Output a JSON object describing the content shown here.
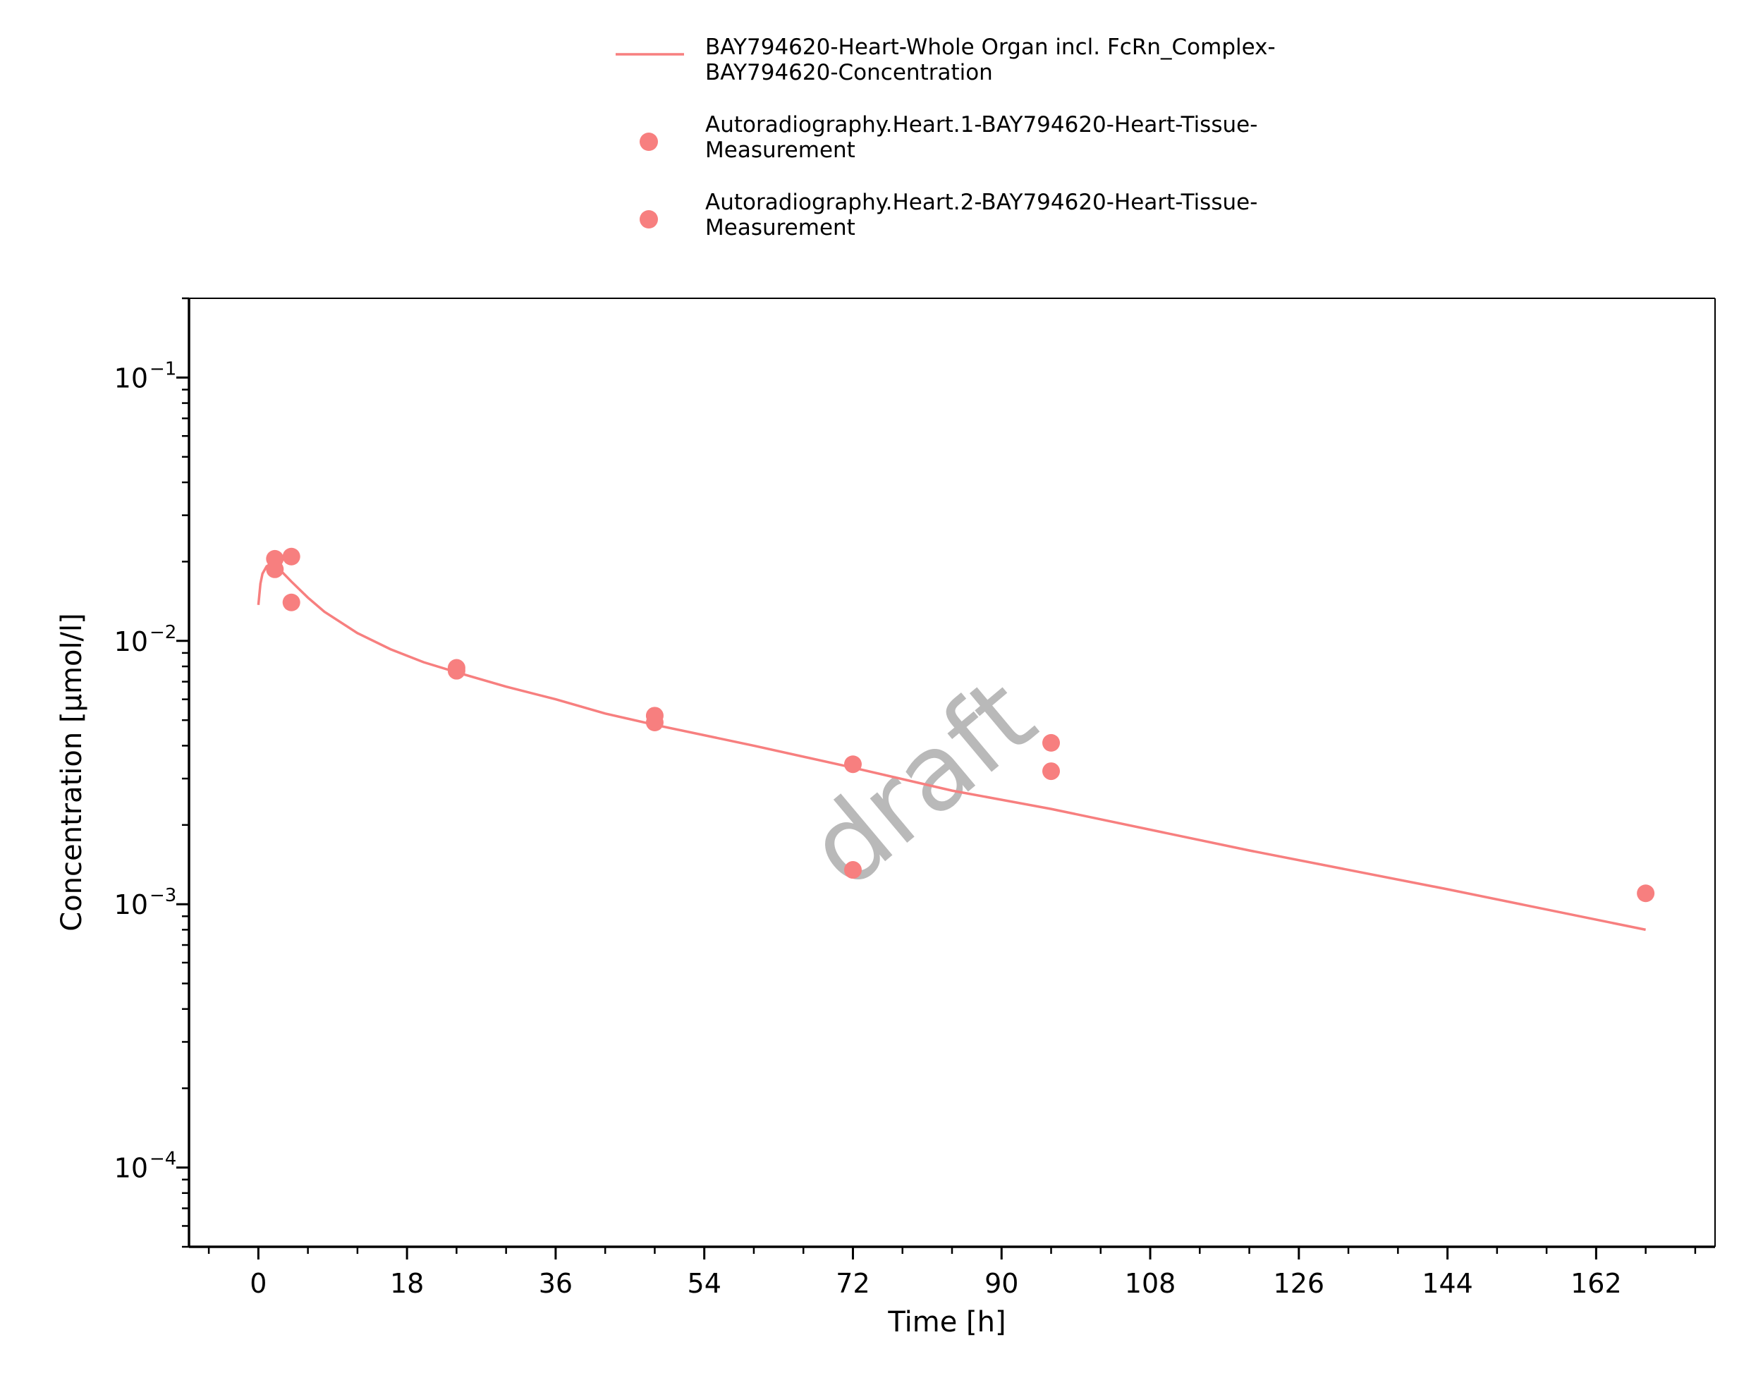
{
  "chart_data": {
    "type": "scatter",
    "xlabel": "Time [h]",
    "ylabel": "Concentration [µmol/l]",
    "x_ticks": [
      "0",
      "18",
      "36",
      "54",
      "72",
      "90",
      "108",
      "126",
      "144",
      "162"
    ],
    "x_tick_values": [
      0,
      18,
      36,
      54,
      72,
      90,
      108,
      126,
      144,
      162
    ],
    "xlim": [
      -8.4,
      176.4
    ],
    "y_scale": "log",
    "ylim": [
      5e-05,
      0.2
    ],
    "y_ticks": [
      {
        "value": 0.1,
        "base": "10",
        "exponent": "−1"
      },
      {
        "value": 0.01,
        "base": "10",
        "exponent": "−2"
      },
      {
        "value": 0.001,
        "base": "10",
        "exponent": "−3"
      },
      {
        "value": 0.0001,
        "base": "10",
        "exponent": "−4"
      }
    ],
    "grid": false,
    "legend_position": "top-center",
    "watermark": "draft",
    "series": [
      {
        "name_lines": [
          "BAY794620-Heart-Whole Organ incl. FcRn_Complex-",
          "BAY794620-Concentration"
        ],
        "kind": "line",
        "color": "#f77f7f",
        "x": [
          0,
          0.25,
          0.5,
          1,
          1.5,
          2,
          3,
          4,
          6,
          8,
          12,
          16,
          20,
          24,
          30,
          36,
          42,
          48,
          60,
          72,
          84,
          96,
          120,
          144,
          168
        ],
        "y": [
          0.0137,
          0.0165,
          0.018,
          0.0192,
          0.0196,
          0.0193,
          0.0181,
          0.0168,
          0.0146,
          0.0129,
          0.0107,
          0.0093,
          0.0083,
          0.0076,
          0.0067,
          0.006,
          0.0053,
          0.0048,
          0.004,
          0.0033,
          0.0027,
          0.0023,
          0.0016,
          0.00114,
          0.0008
        ]
      },
      {
        "name_lines": [
          "Autoradiography.Heart.1-BAY794620-Heart-Tissue-",
          "Measurement"
        ],
        "kind": "scatter",
        "color": "#f77f7f",
        "x": [
          2,
          4,
          24,
          48,
          72,
          96,
          168
        ],
        "y": [
          0.0205,
          0.0209,
          0.0079,
          0.0052,
          0.0034,
          0.0041,
          0.0011
        ]
      },
      {
        "name_lines": [
          "Autoradiography.Heart.2-BAY794620-Heart-Tissue-",
          "Measurement"
        ],
        "kind": "scatter",
        "color": "#f77f7f",
        "x": [
          2,
          4,
          24,
          48,
          72,
          96
        ],
        "y": [
          0.0187,
          0.014,
          0.0077,
          0.0049,
          0.00135,
          0.0032
        ]
      }
    ]
  }
}
